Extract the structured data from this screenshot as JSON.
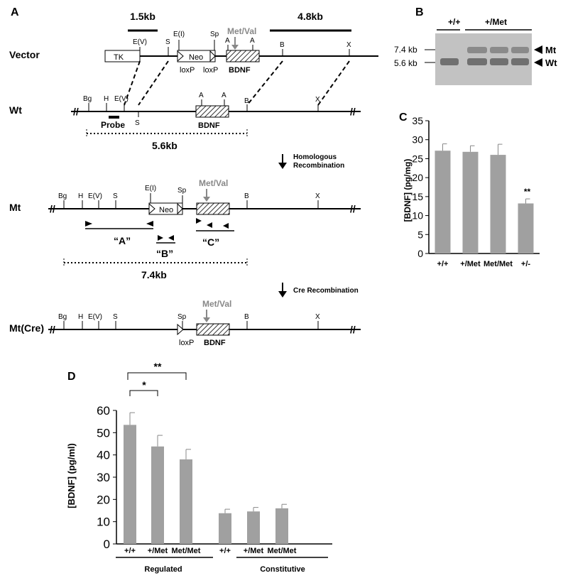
{
  "panelA": {
    "letter": "A",
    "scale1": "1.5kb",
    "scale2": "4.8kb",
    "rows": {
      "vector": "Vector",
      "wt": "Wt",
      "mt": "Mt",
      "mtcre": "Mt(Cre)"
    },
    "sites": {
      "Bg": "Bg",
      "H": "H",
      "EV": "E(V)",
      "S": "S",
      "EI": "E(I)",
      "Sp": "Sp",
      "A": "A",
      "B": "B",
      "X": "X"
    },
    "tk": "TK",
    "neo": "Neo",
    "loxp": "loxP",
    "bdnf": "BDNF",
    "metval": "Met/Val",
    "probe": "Probe",
    "wt_len": "5.6kb",
    "mt_len": "7.4kb",
    "step1a": "Homologous",
    "step1b": "Recombination",
    "step2": "Cre Recombination",
    "primerA": "“A”",
    "primerB": "“B”",
    "primerC": "“C”"
  },
  "panelB": {
    "letter": "B",
    "lane_wt": "+/+",
    "lane_het": "+/Met",
    "size_mt": "7.4 kb",
    "size_wt": "5.6 kb",
    "band_mt": "Mt",
    "band_wt": "Wt"
  },
  "panelC": {
    "letter": "C",
    "chart_data": {
      "type": "bar",
      "ylabel": "[BDNF] (pg/mg)",
      "categories": [
        "+/+",
        "+/Met",
        "Met/Met",
        "+/-"
      ],
      "values": [
        27.1,
        26.8,
        26.0,
        13.2
      ],
      "errors": [
        1.8,
        1.6,
        2.8,
        1.2
      ],
      "ylim": [
        0,
        35
      ],
      "yticks": [
        0,
        5,
        10,
        15,
        20,
        25,
        30,
        35
      ],
      "annotation": "**",
      "bar_color": "#a0a0a0"
    }
  },
  "panelD": {
    "letter": "D",
    "chart_data": {
      "type": "bar",
      "ylabel": "[BDNF] (pg/ml)",
      "categories": [
        "+/+",
        "+/Met",
        "Met/Met",
        "+/+",
        "+/Met",
        "Met/Met"
      ],
      "groups": [
        "Regulated",
        "Constitutive"
      ],
      "values": [
        53.5,
        43.8,
        38.0,
        13.8,
        14.6,
        16.0
      ],
      "errors": [
        5.5,
        5.0,
        4.5,
        1.8,
        1.8,
        1.8
      ],
      "ylim": [
        0,
        60
      ],
      "yticks": [
        0,
        10,
        20,
        30,
        40,
        50,
        60
      ],
      "sig1": "*",
      "sig2": "**",
      "bar_color": "#a0a0a0"
    }
  }
}
